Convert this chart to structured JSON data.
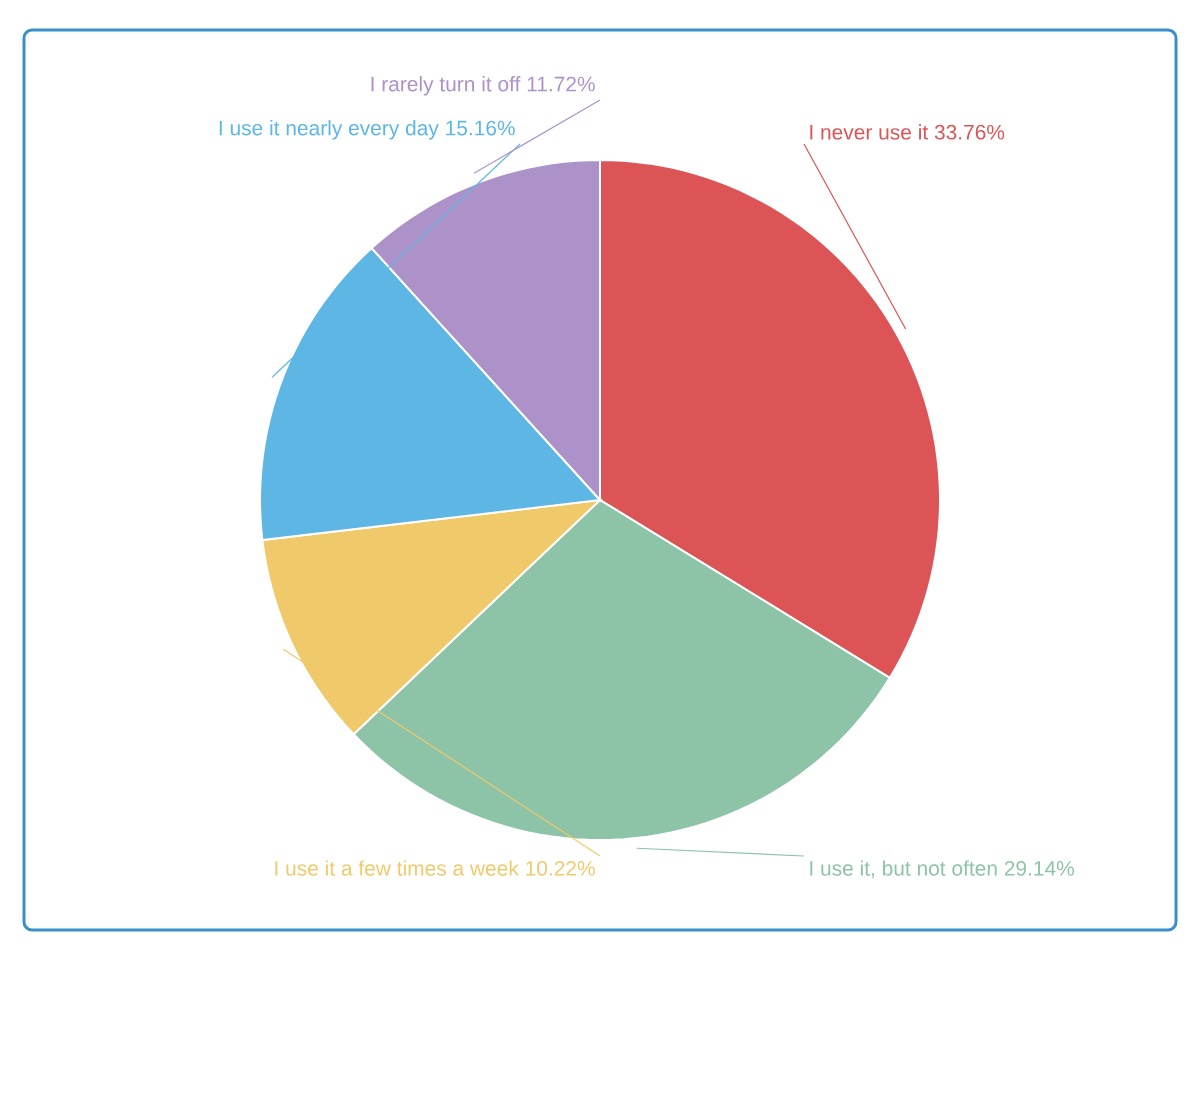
{
  "chart_data": {
    "type": "pie",
    "categories": [
      "I never use it",
      "I use it, but not often",
      "I use it a few times a week",
      "I use it nearly every day",
      "I rarely turn it off"
    ],
    "values": [
      33.76,
      29.14,
      10.22,
      15.16,
      11.72
    ],
    "colors": [
      "#dc5456",
      "#8dc3a7",
      "#f0c96a",
      "#5db6e4",
      "#ad91c9"
    ],
    "value_labels": [
      "33.76%",
      "29.14%",
      "10.22%",
      "15.16%",
      "11.72%"
    ]
  }
}
